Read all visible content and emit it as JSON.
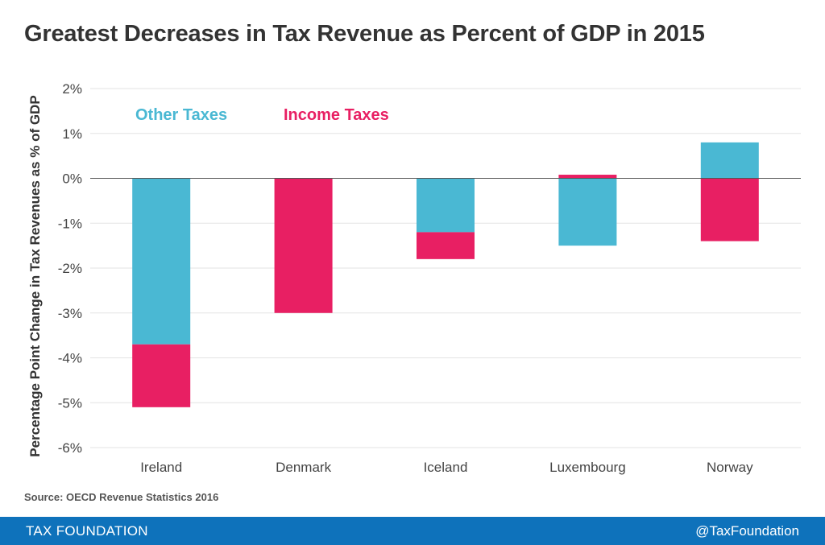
{
  "title": "Greatest Decreases in Tax Revenue as Percent of GDP in 2015",
  "source": "Source: OECD Revenue Statistics 2016",
  "footer": {
    "left": "TAX FOUNDATION",
    "right": "@TaxFoundation"
  },
  "colors": {
    "other_taxes": "#4ab8d3",
    "income_taxes": "#e81f63",
    "footer_bg": "#0e72bb"
  },
  "chart_data": {
    "type": "bar",
    "stacked": true,
    "ylabel": "Percentage Point Change in Tax Revenues  as % of GDP",
    "ylim": [
      -6,
      2
    ],
    "yticks": [
      2,
      1,
      0,
      -1,
      -2,
      -3,
      -4,
      -5,
      -6
    ],
    "ytick_labels": [
      "2%",
      "1%",
      "0%",
      "-1%",
      "-2%",
      "-3%",
      "-4%",
      "-5%",
      "-6%"
    ],
    "grid": true,
    "legend_position": "top-left",
    "categories": [
      "Ireland",
      "Denmark",
      "Iceland",
      "Luxembourg",
      "Norway"
    ],
    "series": [
      {
        "name": "Other Taxes",
        "color": "#4ab8d3",
        "values": [
          -3.7,
          0.0,
          -1.2,
          -1.5,
          0.8
        ]
      },
      {
        "name": "Income Taxes",
        "color": "#e81f63",
        "values": [
          -1.4,
          -3.0,
          -0.6,
          0.08,
          -1.4
        ]
      }
    ]
  }
}
